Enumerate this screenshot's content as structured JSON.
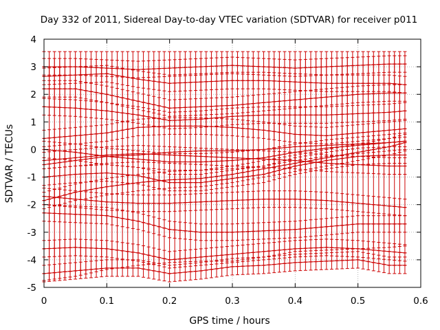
{
  "chart_data": {
    "type": "line",
    "title": "Day 332 of 2011, Sidereal Day-to-day VTEC variation (SDTVAR) for receiver p011",
    "xlabel": "GPS time / hours",
    "ylabel": "SDTVAR / TECUs",
    "xlim": [
      0,
      0.6
    ],
    "ylim": [
      -5,
      4
    ],
    "x_ticks": [
      "0",
      "0.1",
      "0.2",
      "0.3",
      "0.4",
      "0.5",
      "0.6"
    ],
    "y_ticks": [
      "-5",
      "-4",
      "-3",
      "-2",
      "-1",
      "0",
      "1",
      "2",
      "3",
      "4"
    ],
    "grid": true,
    "error_bars": true,
    "series_color": "#cc0000",
    "grid_color": "#a0a0a0",
    "x": [
      0,
      0.05,
      0.1,
      0.15,
      0.2,
      0.25,
      0.3,
      0.35,
      0.4,
      0.45,
      0.5,
      0.55,
      0.575
    ],
    "series": [
      {
        "values": [
          -0.55,
          -0.4,
          -0.25,
          -0.2,
          -0.1,
          -0.05,
          -0.05,
          0.0,
          0.1,
          0.15,
          0.2,
          0.25,
          0.3
        ],
        "error": [
          4.2,
          4.2,
          4.1,
          4.0,
          4.0,
          4.0,
          4.0,
          3.9,
          3.8,
          3.8,
          3.8,
          3.8,
          3.8
        ]
      },
      {
        "values": [
          0.0,
          -0.1,
          -0.25,
          -0.35,
          -0.45,
          -0.45,
          -0.4,
          -0.3,
          -0.1,
          0.05,
          0.15,
          0.25,
          0.3
        ],
        "error": [
          0.3,
          0.3,
          0.3,
          0.3,
          0.3,
          0.3,
          0.3,
          0.3,
          0.3,
          0.3,
          0.3,
          0.3,
          0.3
        ]
      },
      {
        "values": [
          -1.85,
          -1.55,
          -1.35,
          -1.2,
          -1.1,
          -1.05,
          -0.9,
          -0.7,
          -0.5,
          -0.3,
          -0.1,
          0.1,
          0.25
        ],
        "error": [
          0.3,
          0.3,
          0.3,
          0.3,
          0.3,
          0.3,
          0.3,
          0.3,
          0.3,
          0.3,
          0.3,
          0.3,
          0.3
        ]
      },
      {
        "values": [
          -0.4,
          -0.3,
          -0.2,
          -0.15,
          -0.2,
          -0.25,
          -0.3,
          -0.35,
          -0.4,
          -0.5,
          -0.55,
          -0.6,
          -0.6
        ],
        "error": [
          0.3,
          0.3,
          0.3,
          0.3,
          0.3,
          0.3,
          0.3,
          0.3,
          0.3,
          0.3,
          0.3,
          0.3,
          0.3
        ]
      },
      {
        "values": [
          -1.0,
          -0.9,
          -0.85,
          -0.95,
          -1.2,
          -1.2,
          -1.05,
          -0.9,
          -0.6,
          -0.4,
          -0.25,
          -0.2,
          -0.2
        ],
        "error": [
          0.3,
          0.3,
          0.3,
          0.3,
          0.3,
          0.3,
          0.3,
          0.3,
          0.3,
          0.3,
          0.3,
          0.3,
          0.3
        ]
      },
      {
        "values": [
          0.4,
          0.5,
          0.6,
          0.8,
          0.85,
          0.85,
          0.8,
          0.7,
          0.55,
          0.5,
          0.6,
          0.7,
          0.75
        ],
        "error": [
          0.3,
          0.3,
          0.3,
          0.3,
          0.3,
          0.3,
          0.3,
          0.3,
          0.3,
          0.3,
          0.3,
          0.3,
          0.3
        ]
      },
      {
        "values": [
          2.2,
          2.2,
          2.0,
          1.75,
          1.5,
          1.55,
          1.6,
          1.7,
          1.8,
          1.9,
          2.0,
          2.05,
          2.05
        ],
        "error": [
          0.3,
          0.3,
          0.3,
          0.3,
          0.3,
          0.3,
          0.3,
          0.3,
          0.3,
          0.3,
          0.3,
          0.3,
          0.3
        ]
      },
      {
        "values": [
          3.0,
          3.0,
          2.95,
          2.9,
          2.95,
          3.0,
          3.05,
          3.0,
          2.95,
          3.0,
          3.05,
          3.1,
          3.1
        ],
        "error": [
          0.3,
          0.3,
          0.3,
          0.3,
          0.3,
          0.3,
          0.3,
          0.3,
          0.3,
          0.3,
          0.3,
          0.3,
          0.3
        ]
      },
      {
        "values": [
          2.65,
          2.7,
          2.75,
          2.55,
          2.4,
          2.45,
          2.5,
          2.5,
          2.45,
          2.4,
          2.4,
          2.4,
          2.35
        ],
        "error": [
          0.3,
          0.3,
          0.3,
          0.3,
          0.3,
          0.3,
          0.3,
          0.3,
          0.3,
          0.3,
          0.3,
          0.3,
          0.3
        ]
      },
      {
        "values": [
          -4.5,
          -4.4,
          -4.3,
          -4.3,
          -4.5,
          -4.4,
          -4.25,
          -4.2,
          -4.1,
          -4.05,
          -4.0,
          -4.2,
          -4.2
        ],
        "error": [
          0.3,
          0.3,
          0.3,
          0.3,
          0.3,
          0.3,
          0.3,
          0.3,
          0.3,
          0.3,
          0.3,
          0.3,
          0.3
        ]
      },
      {
        "values": [
          -3.6,
          -3.55,
          -3.6,
          -3.75,
          -4.0,
          -3.9,
          -3.8,
          -3.7,
          -3.6,
          -3.55,
          -3.6,
          -3.7,
          -3.75
        ],
        "error": [
          0.3,
          0.3,
          0.3,
          0.3,
          0.3,
          0.3,
          0.3,
          0.3,
          0.3,
          0.3,
          0.3,
          0.3,
          0.3
        ]
      },
      {
        "values": [
          -2.3,
          -2.35,
          -2.4,
          -2.6,
          -2.9,
          -3.0,
          -3.0,
          -2.95,
          -2.9,
          -2.8,
          -2.7,
          -2.7,
          -2.7
        ],
        "error": [
          0.3,
          0.3,
          0.3,
          0.3,
          0.3,
          0.3,
          0.3,
          0.3,
          0.3,
          0.3,
          0.3,
          0.3,
          0.3
        ]
      },
      {
        "values": [
          -1.7,
          -1.8,
          -1.9,
          -1.95,
          -1.95,
          -1.9,
          -1.85,
          -1.8,
          -1.8,
          -1.85,
          -1.95,
          -2.05,
          -2.1
        ],
        "error": [
          0.3,
          0.3,
          0.3,
          0.3,
          0.3,
          0.3,
          0.3,
          0.3,
          0.3,
          0.3,
          0.3,
          0.3,
          0.3
        ]
      },
      {
        "values": [
          1.55,
          1.5,
          1.4,
          1.25,
          1.05,
          1.1,
          1.2,
          1.25,
          1.25,
          1.25,
          1.3,
          1.35,
          1.4
        ],
        "error": [
          0.3,
          0.3,
          0.3,
          0.3,
          0.3,
          0.3,
          0.3,
          0.3,
          0.3,
          0.3,
          0.3,
          0.3,
          0.3
        ]
      }
    ]
  }
}
